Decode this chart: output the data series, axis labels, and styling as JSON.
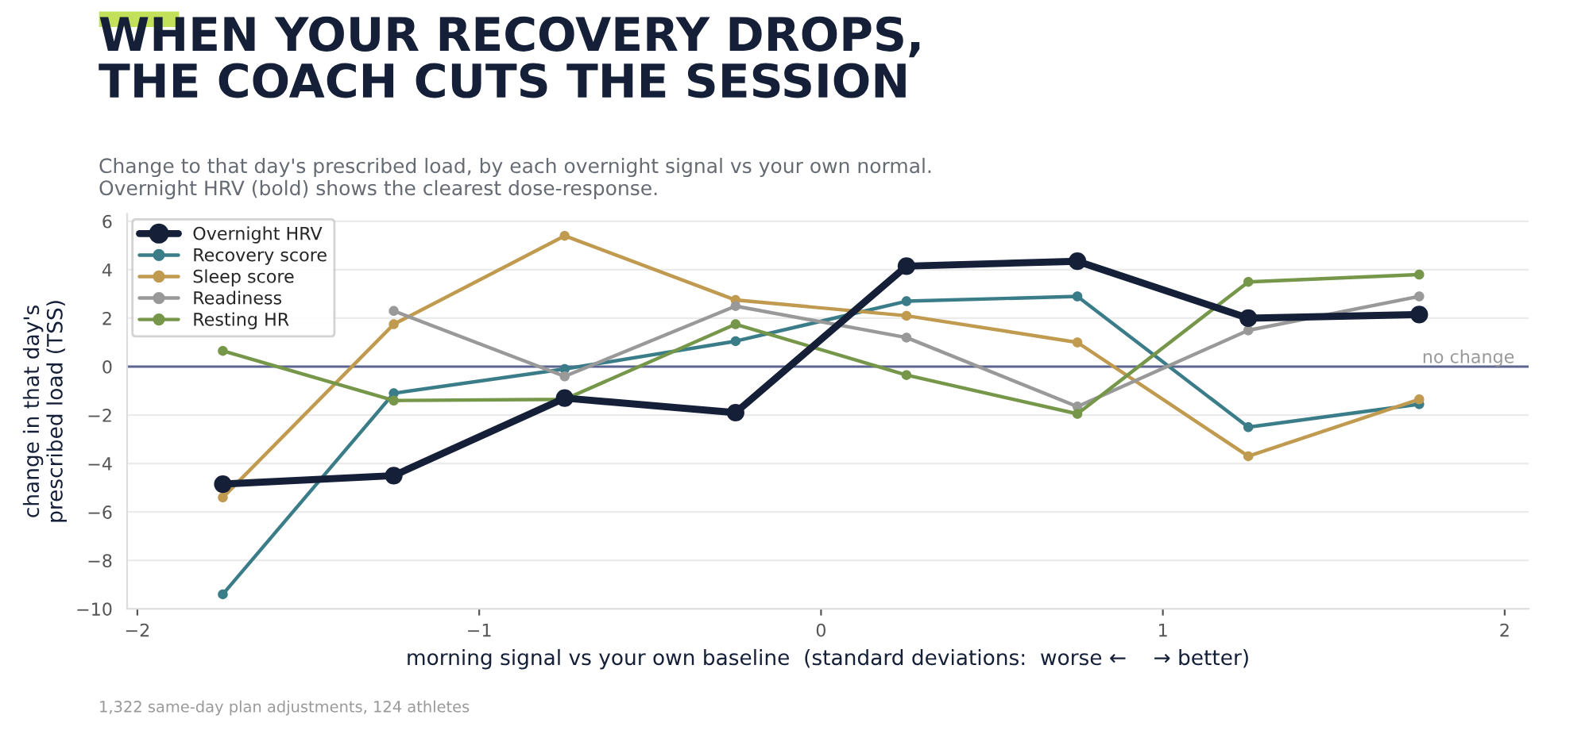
{
  "chart_data": {
    "type": "line",
    "title": "WHEN YOUR RECOVERY DROPS,\nTHE COACH CUTS THE SESSION",
    "subtitle": "Change to that day's prescribed load, by each overnight signal vs your own normal.\nOvernight HRV (bold) shows the clearest dose-response.",
    "xlabel": "morning signal vs your own baseline  (standard deviations:  worse ←    → better)",
    "ylabel": "change in that day's\nprescribed load (TSS)",
    "x": [
      -1.75,
      -1.25,
      -0.75,
      -0.25,
      0.25,
      0.75,
      1.25,
      1.75
    ],
    "series": [
      {
        "name": "Overnight HRV",
        "color": "#152038",
        "values": [
          -4.85,
          -4.5,
          -1.3,
          -1.9,
          4.15,
          4.35,
          2.0,
          2.15
        ]
      },
      {
        "name": "Recovery score",
        "color": "#3a7d89",
        "values": [
          -9.4,
          -1.1,
          -0.1,
          1.05,
          2.7,
          2.9,
          -2.5,
          -1.55
        ]
      },
      {
        "name": "Sleep score",
        "color": "#c09a4f",
        "values": [
          -5.4,
          1.75,
          5.4,
          2.75,
          2.1,
          1.0,
          -3.7,
          -1.35
        ]
      },
      {
        "name": "Readiness",
        "color": "#999999",
        "values": [
          null,
          2.3,
          -0.4,
          2.5,
          1.2,
          -1.65,
          1.5,
          2.9
        ]
      },
      {
        "name": "Resting HR",
        "color": "#76974a",
        "values": [
          0.65,
          -1.4,
          -1.35,
          1.75,
          -0.35,
          -1.95,
          3.5,
          3.8
        ]
      }
    ],
    "xlim": [
      -2.03,
      2.07
    ],
    "ylim": [
      -10,
      6.3
    ],
    "xticks": [
      {
        "value": -2,
        "label": "−2"
      },
      {
        "value": -1,
        "label": "−1"
      },
      0,
      1,
      2
    ],
    "yticks": [
      {
        "value": -10,
        "label": "−10"
      },
      {
        "value": -8,
        "label": "−8"
      },
      {
        "value": -6,
        "label": "−6"
      },
      {
        "value": -4,
        "label": "−4"
      },
      {
        "value": -2,
        "label": "−2"
      },
      0,
      2,
      4,
      6
    ],
    "ref_lines": [
      {
        "axis": "y",
        "value": 0,
        "label": "no change",
        "color": "#5c6490"
      }
    ],
    "grid": "y",
    "legend": "top left",
    "marker": "circle",
    "line_style": "solid",
    "annotations": [
      "1,322 same-day plan adjustments, 124 athletes"
    ]
  }
}
